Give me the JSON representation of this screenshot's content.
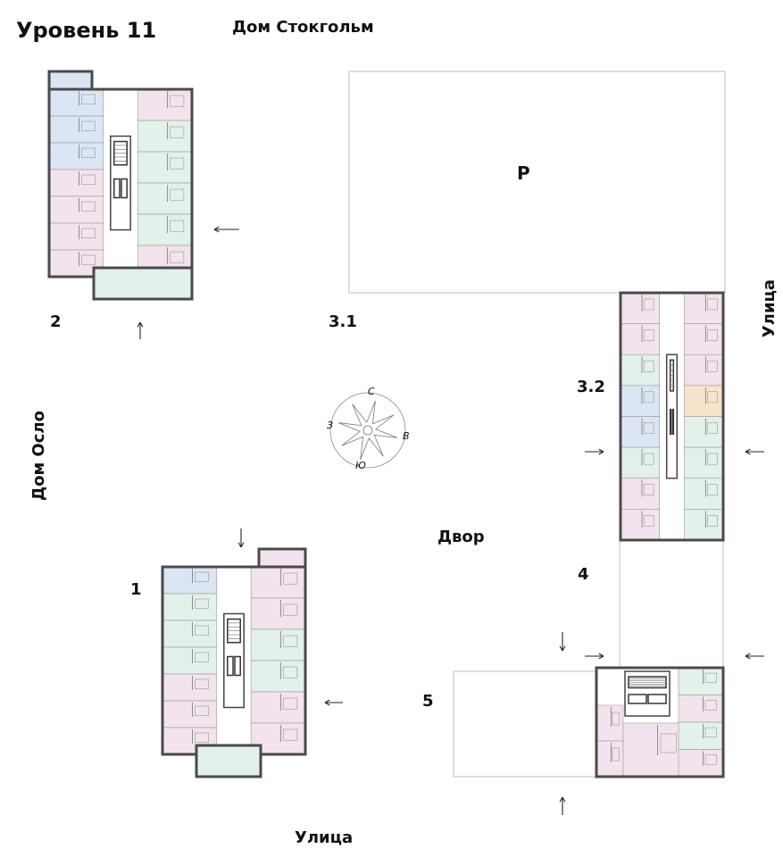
{
  "title": "Уровень 11",
  "labels": {
    "house_north": "Дом Стокгольм",
    "house_west": "Дом Осло",
    "street_east": "Улица",
    "street_south": "Улица",
    "courtyard": "Двор",
    "parking": "P"
  },
  "sections": {
    "s1": "1",
    "s2": "2",
    "s31": "3.1",
    "s32": "3.2",
    "s4": "4",
    "s5": "5"
  },
  "compass": {
    "north": "С",
    "south": "Ю",
    "west": "З",
    "east": "В"
  },
  "colors": {
    "pink": "#f2e3ee",
    "green": "#e2f1ea",
    "blue": "#dce5f4",
    "orange": "#f8e3cc",
    "wall": "#4a4a4a",
    "outline": "#bdbdbd"
  },
  "units": {
    "s2_left": [
      "blue",
      "blue",
      "blue",
      "pink",
      "pink",
      "pink",
      "pink"
    ],
    "s2_right": [
      "pink",
      "green",
      "green",
      "green",
      "green",
      "pink"
    ],
    "s1_left": [
      "blue",
      "green",
      "green",
      "green",
      "pink",
      "pink",
      "pink"
    ],
    "s1_right": [
      "pink",
      "pink",
      "green",
      "green",
      "pink",
      "pink"
    ],
    "s32_left": [
      "pink",
      "pink",
      "green",
      "blue",
      "blue",
      "green",
      "pink",
      "pink"
    ],
    "s32_right": [
      "pink",
      "pink",
      "pink",
      "orange",
      "green",
      "green",
      "green",
      "green"
    ],
    "s5": [
      "pink",
      "pink",
      "green",
      "pink",
      "green"
    ]
  }
}
